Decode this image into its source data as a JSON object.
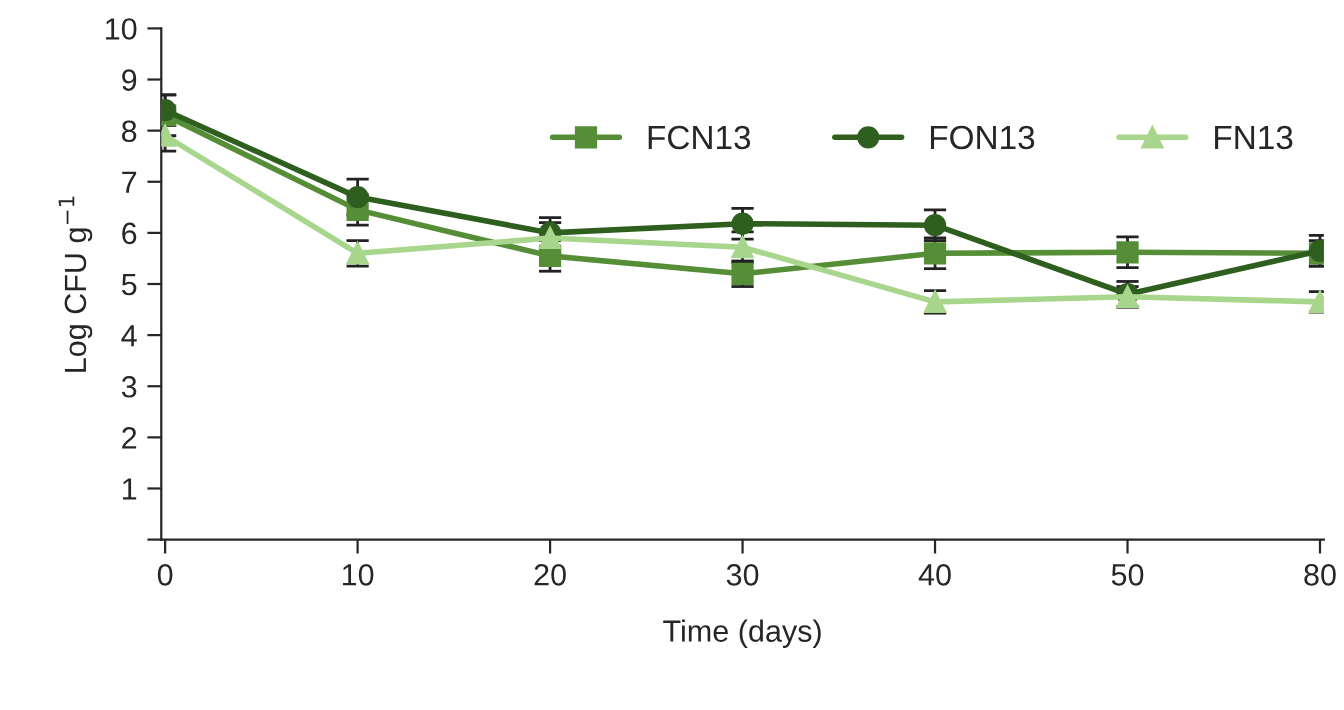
{
  "chart_data": {
    "type": "line",
    "xlabel": "Time (days)",
    "ylabel": "Log CFU g$^{−1}$",
    "categories": [
      "0",
      "10",
      "20",
      "30",
      "40",
      "50",
      "80"
    ],
    "series": [
      {
        "name": "FCN13",
        "color": "#558e37",
        "marker": "square",
        "values": [
          8.3,
          6.45,
          5.55,
          5.2,
          5.6,
          5.62,
          5.6
        ],
        "errors": [
          0.4,
          0.3,
          0.3,
          0.25,
          0.3,
          0.3,
          0.25
        ]
      },
      {
        "name": "FON13",
        "color": "#2f5f1f",
        "marker": "circle",
        "values": [
          8.4,
          6.7,
          6.0,
          6.18,
          6.15,
          4.8,
          5.65
        ],
        "errors": [
          0.3,
          0.35,
          0.3,
          0.3,
          0.3,
          0.25,
          0.3
        ]
      },
      {
        "name": "FN13",
        "color": "#a8d68c",
        "marker": "triangle",
        "values": [
          7.9,
          5.6,
          5.9,
          5.72,
          4.65,
          4.75,
          4.65
        ],
        "errors": [
          0.3,
          0.25,
          0.3,
          0.3,
          0.22,
          0.2,
          0.2
        ]
      }
    ],
    "ylim": [
      0,
      10
    ],
    "yticks": [
      {
        "value": 0,
        "label": null
      },
      1,
      2,
      3,
      4,
      5,
      6,
      7,
      8,
      9,
      10
    ],
    "grid": false,
    "legend": "top right",
    "line_style": "solid"
  }
}
